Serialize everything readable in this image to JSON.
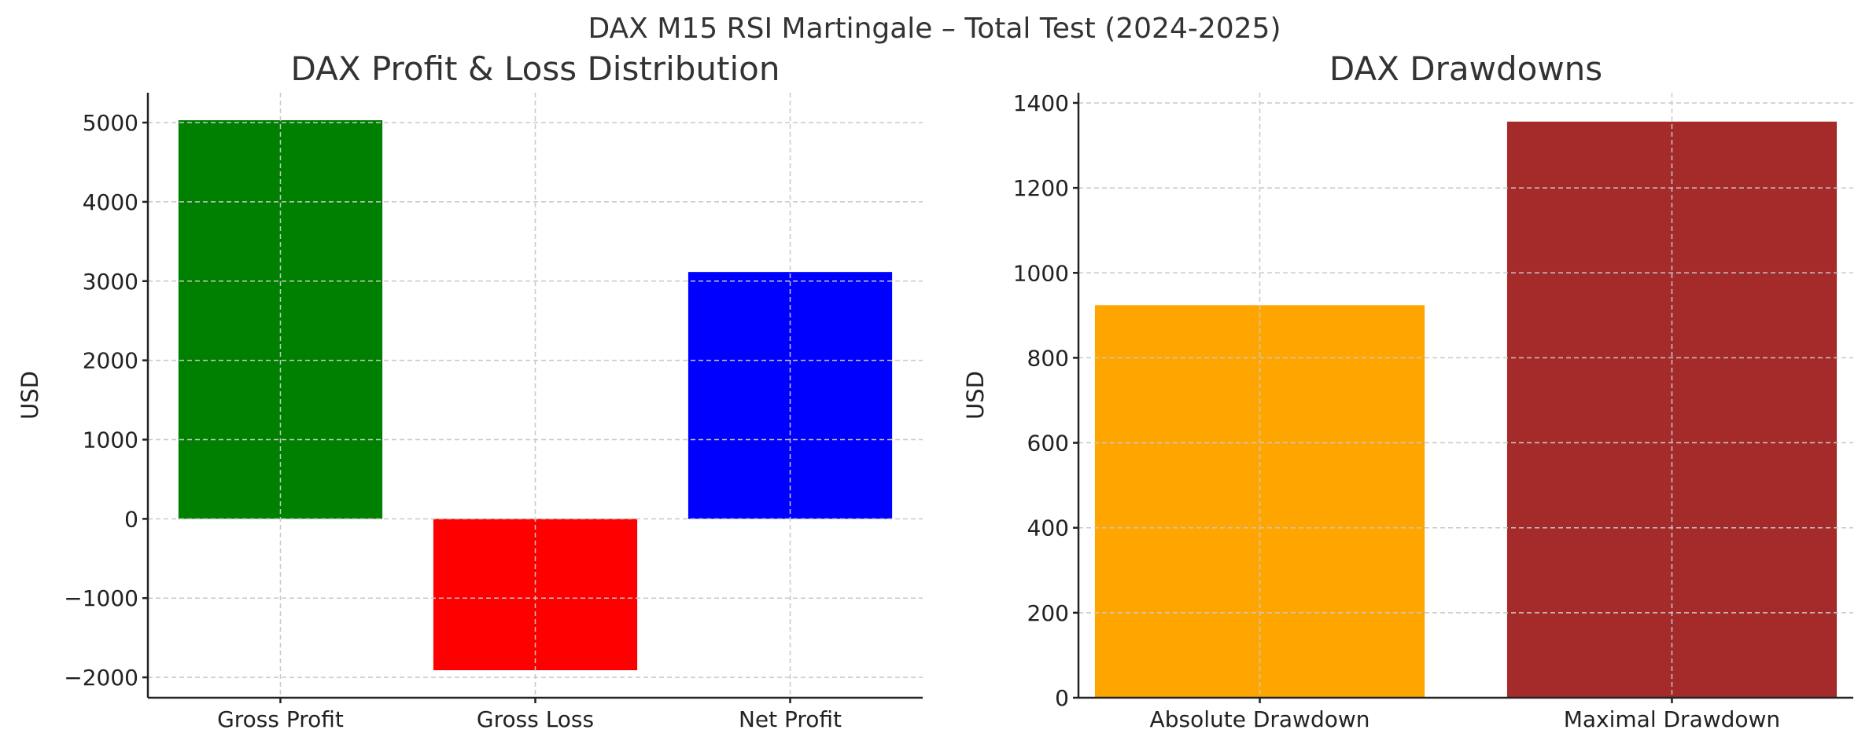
{
  "suptitle": "DAX M15 RSI Martingale – Total Test (2024-2025)",
  "chart_data": [
    {
      "type": "bar",
      "title": "DAX Profit & Loss Distribution",
      "xlabel": "",
      "ylabel": "USD",
      "categories": [
        "Gross Profit",
        "Gross Loss",
        "Net Profit"
      ],
      "values": [
        5030,
        -1910,
        3115
      ],
      "colors": [
        "#008000",
        "#ff0000",
        "#0000ff"
      ],
      "ylim": [
        -2257,
        5377
      ],
      "yticks": [
        -2000,
        -1000,
        0,
        1000,
        2000,
        3000,
        4000,
        5000
      ],
      "ytick_labels": [
        "−2000",
        "−1000",
        "0",
        "1000",
        "2000",
        "3000",
        "4000",
        "5000"
      ],
      "grid": true
    },
    {
      "type": "bar",
      "title": "DAX Drawdowns",
      "xlabel": "",
      "ylabel": "USD",
      "categories": [
        "Absolute Drawdown",
        "Maximal Drawdown"
      ],
      "values": [
        924,
        1356
      ],
      "colors": [
        "#ffa500",
        "#a52a2a"
      ],
      "ylim": [
        0,
        1424
      ],
      "yticks": [
        0,
        200,
        400,
        600,
        800,
        1000,
        1200,
        1400
      ],
      "ytick_labels": [
        "0",
        "200",
        "400",
        "600",
        "800",
        "1000",
        "1200",
        "1400"
      ],
      "grid": true
    }
  ]
}
